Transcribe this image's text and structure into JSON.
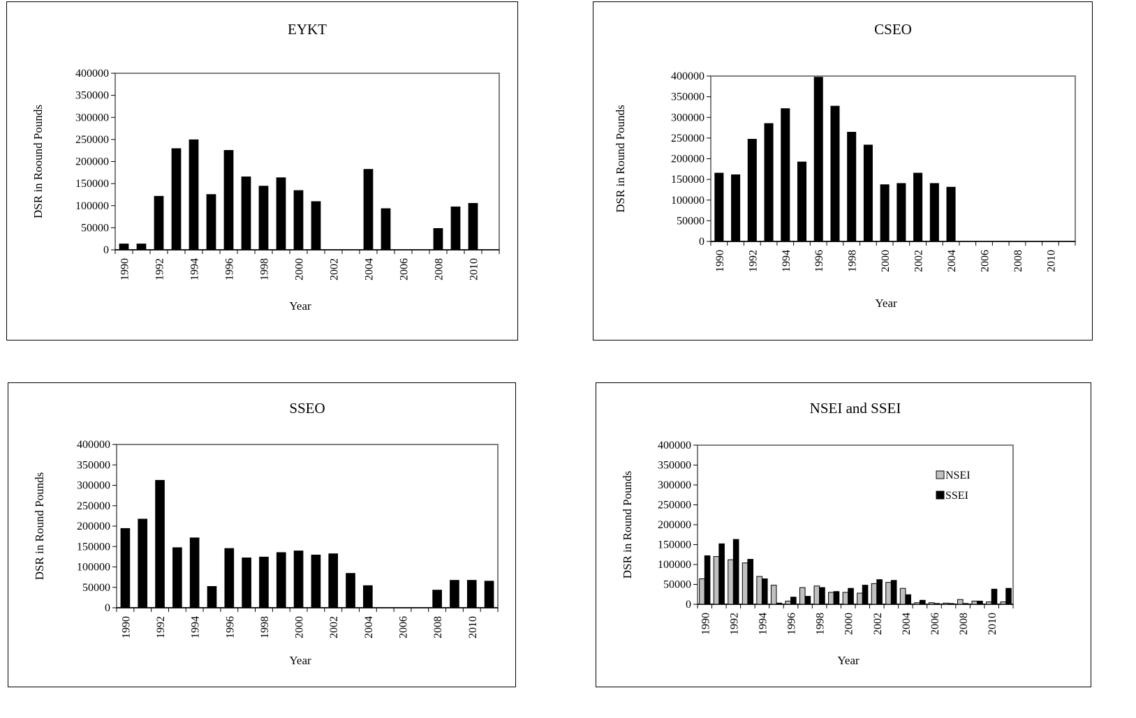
{
  "charts": {
    "eykt": {
      "chart_data": {
        "type": "bar",
        "title": "EYKT",
        "xlabel": "Year",
        "ylabel": "DSR in Roound Pounds",
        "ylim": [
          0,
          400000
        ],
        "yticks": [
          "400000",
          "350000",
          "300000",
          "250000",
          "200000",
          "150000",
          "100000",
          "50000",
          "0"
        ],
        "categories": [
          "1990",
          "1991",
          "1992",
          "1993",
          "1994",
          "1995",
          "1996",
          "1997",
          "1998",
          "1999",
          "2000",
          "2001",
          "2002",
          "2003",
          "2004",
          "2005",
          "2006",
          "2007",
          "2008",
          "2009",
          "2010",
          "2011"
        ],
        "xtick_labels": [
          "1990",
          "1992",
          "1994",
          "1996",
          "1998",
          "2000",
          "2002",
          "2004",
          "2006",
          "2008",
          "2010"
        ],
        "series": [
          {
            "color": "#000000",
            "values": [
              14000,
              14000,
              122000,
              230000,
              250000,
              126000,
              226000,
              166000,
              145000,
              164000,
              135000,
              110000,
              0,
              0,
              183000,
              94000,
              0,
              0,
              49000,
              98000,
              106000,
              0
            ]
          }
        ],
        "grid": false
      }
    },
    "cseo": {
      "chart_data": {
        "type": "bar",
        "title": "CSEO",
        "xlabel": "Year",
        "ylabel": "DSR in Round Pounds",
        "ylim": [
          0,
          400000
        ],
        "yticks": [
          "400000",
          "350000",
          "300000",
          "250000",
          "200000",
          "150000",
          "100000",
          "50000",
          "0"
        ],
        "categories": [
          "1990",
          "1991",
          "1992",
          "1993",
          "1994",
          "1995",
          "1996",
          "1997",
          "1998",
          "1999",
          "2000",
          "2001",
          "2002",
          "2003",
          "2004",
          "2005",
          "2006",
          "2007",
          "2008",
          "2009",
          "2010",
          "2011"
        ],
        "xtick_labels": [
          "1990",
          "1992",
          "1994",
          "1996",
          "1998",
          "2000",
          "2002",
          "2004",
          "2006",
          "2008",
          "2010"
        ],
        "series": [
          {
            "color": "#000000",
            "values": [
              166000,
              162000,
              248000,
              286000,
              322000,
              193000,
              398000,
              328000,
              265000,
              234000,
              138000,
              141000,
              166000,
              141000,
              132000,
              0,
              0,
              0,
              0,
              0,
              0,
              0
            ]
          }
        ],
        "grid": false
      }
    },
    "sseo": {
      "chart_data": {
        "type": "bar",
        "title": "SSEO",
        "xlabel": "Year",
        "ylabel": "DSR in Round Pounds",
        "ylim": [
          0,
          400000
        ],
        "yticks": [
          "400000",
          "350000",
          "300000",
          "250000",
          "200000",
          "150000",
          "100000",
          "50000",
          "0"
        ],
        "categories": [
          "1990",
          "1991",
          "1992",
          "1993",
          "1994",
          "1995",
          "1996",
          "1997",
          "1998",
          "1999",
          "2000",
          "2001",
          "2002",
          "2003",
          "2004",
          "2005",
          "2006",
          "2007",
          "2008",
          "2009",
          "2010",
          "2011"
        ],
        "xtick_labels": [
          "1990",
          "1992",
          "1994",
          "1996",
          "1998",
          "2000",
          "2002",
          "2004",
          "2006",
          "2008",
          "2010"
        ],
        "series": [
          {
            "color": "#000000",
            "values": [
              195000,
              218000,
              313000,
              148000,
              172000,
              53000,
              146000,
              123000,
              125000,
              136000,
              140000,
              130000,
              133000,
              85000,
              55000,
              0,
              0,
              0,
              44000,
              68000,
              68000,
              66000
            ]
          }
        ],
        "grid": false
      }
    },
    "nsei_ssei": {
      "chart_data": {
        "type": "bar",
        "title": "NSEI and SSEI",
        "xlabel": "Year",
        "ylabel": "DSR in Round Pounds",
        "ylim": [
          0,
          400000
        ],
        "yticks": [
          "400000",
          "350000",
          "300000",
          "250000",
          "200000",
          "150000",
          "100000",
          "50000",
          "0"
        ],
        "categories": [
          "1990",
          "1991",
          "1992",
          "1993",
          "1994",
          "1995",
          "1996",
          "1997",
          "1998",
          "1999",
          "2000",
          "2001",
          "2002",
          "2003",
          "2004",
          "2005",
          "2006",
          "2007",
          "2008",
          "2009",
          "2010",
          "2011"
        ],
        "xtick_labels": [
          "1990",
          "1992",
          "1994",
          "1996",
          "1998",
          "2000",
          "2002",
          "2004",
          "2006",
          "2008",
          "2010"
        ],
        "series": [
          {
            "name": "NSEI",
            "color": "#c0c0c0",
            "values": [
              64000,
              120000,
              112000,
              104000,
              70000,
              48000,
              8000,
              42000,
              46000,
              30000,
              30000,
              28000,
              52000,
              55000,
              40000,
              4000,
              4000,
              3000,
              12000,
              8000,
              6000,
              6000
            ]
          },
          {
            "name": "SSEI",
            "color": "#000000",
            "values": [
              122000,
              152000,
              163000,
              113000,
              64000,
              3000,
              18000,
              20000,
              42000,
              32000,
              40000,
              48000,
              62000,
              60000,
              24000,
              10000,
              2000,
              2000,
              2000,
              8000,
              38000,
              40000
            ]
          }
        ],
        "legend": "right",
        "grid": false
      }
    }
  }
}
